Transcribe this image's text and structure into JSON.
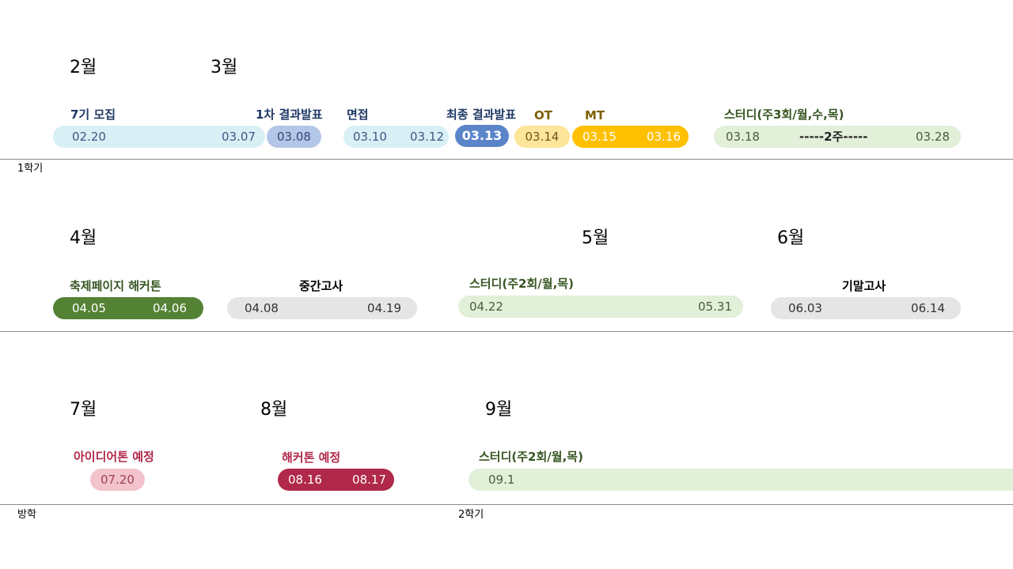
{
  "months": {
    "feb": "2월",
    "mar": "3월",
    "apr": "4월",
    "may": "5월",
    "jun": "6월",
    "jul": "7월",
    "aug": "8월",
    "sep": "9월"
  },
  "semesters": {
    "first": "1학기",
    "vacation": "방학",
    "second": "2학기"
  },
  "row1": {
    "recruit": {
      "title": "7기 모집",
      "start": "02.20",
      "end": "03.07"
    },
    "first_result": {
      "title": "1차 결과발표",
      "date": "03.08"
    },
    "interview": {
      "title": "면접",
      "start": "03.10",
      "end": "03.12"
    },
    "final_result": {
      "title": "최종 결과발표",
      "date": "03.13"
    },
    "ot": {
      "title": "OT",
      "date": "03.14"
    },
    "mt": {
      "title": "MT",
      "start": "03.15",
      "end": "03.16"
    },
    "study": {
      "title": "스터디(주3회/월,수,목)",
      "start": "03.18",
      "mid": "-----2주-----",
      "end": "03.28"
    }
  },
  "row2": {
    "festival": {
      "title": "축제페이지 해커톤",
      "start": "04.05",
      "end": "04.06"
    },
    "midterm": {
      "title": "중간고사",
      "start": "04.08",
      "end": "04.19"
    },
    "study": {
      "title": "스터디(주2회/월,목)",
      "start": "04.22",
      "end": "05.31"
    },
    "final": {
      "title": "기말고사",
      "start": "06.03",
      "end": "06.14"
    }
  },
  "row3": {
    "ideathon": {
      "title": "아이디어톤 예정",
      "date": "07.20"
    },
    "hackathon": {
      "title": "해커톤 예정",
      "start": "08.16",
      "end": "08.17"
    },
    "study": {
      "title": "스터디(주2회/월,목)",
      "start": "09.1"
    }
  },
  "colors": {
    "light_blue": "#d9eff6",
    "periwinkle": "#b4c6e7",
    "blue": "#5b85c9",
    "light_yellow": "#fde59a",
    "gold": "#ffc000",
    "light_green": "#e2efd9",
    "dark_green": "#548235",
    "light_gray": "#e5e5e5",
    "pink": "#f2c3cc",
    "crimson": "#b0284a",
    "navy_text": "#1f3864",
    "olive_text": "#7f6000",
    "green_text": "#375623",
    "crimson_text": "#b0284a"
  }
}
